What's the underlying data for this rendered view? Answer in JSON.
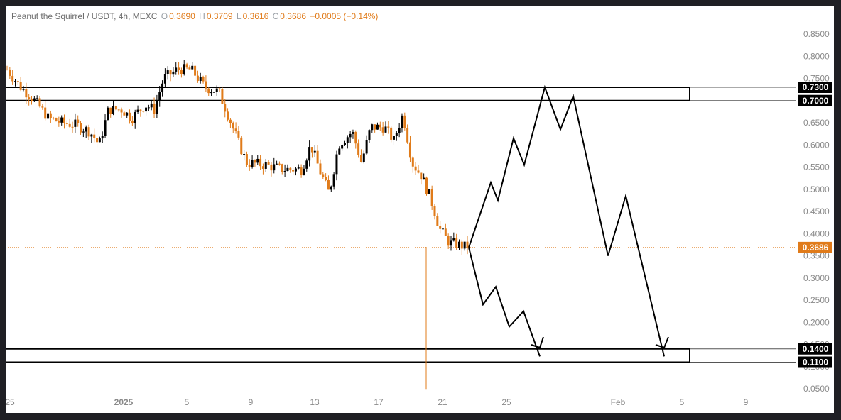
{
  "header": {
    "symbol": "Peanut the Squirrel / USDT, 4h, MEXC",
    "o_label": "O",
    "o_value": "0.3690",
    "h_label": "H",
    "h_value": "0.3709",
    "l_label": "L",
    "l_value": "0.3616",
    "c_label": "C",
    "c_value": "0.3686",
    "change": "−0.0005 (−0.14%)"
  },
  "colors": {
    "up": "#000000",
    "down": "#e07b1a",
    "price_line": "#e07b1a",
    "box": "#000000",
    "axis_text": "#8a8a8a"
  },
  "chart_data": {
    "type": "candlestick",
    "ylim": [
      0.02,
      0.86
    ],
    "y_ticks": [
      "0.8500",
      "0.8000",
      "0.7500",
      "0.7000",
      "0.6500",
      "0.6000",
      "0.5500",
      "0.5000",
      "0.4500",
      "0.4000",
      "0.3500",
      "0.3000",
      "0.2500",
      "0.2000",
      "0.1500",
      "0.1000",
      "0.0500"
    ],
    "x_ticks": [
      "25",
      "2025",
      "5",
      "9",
      "13",
      "17",
      "21",
      "25",
      "Feb",
      "5",
      "9"
    ],
    "last_price": 0.3686,
    "last_price_label": "0.3686",
    "zones": [
      {
        "top": 0.73,
        "bottom": 0.7,
        "top_label": "0.7300",
        "bottom_label": "0.7000"
      },
      {
        "top": 0.14,
        "bottom": 0.11,
        "top_label": "0.1400",
        "bottom_label": "0.1100"
      }
    ],
    "trend": [
      [
        0.0,
        0.77
      ],
      [
        0.03,
        0.73
      ],
      [
        0.06,
        0.7
      ],
      [
        0.09,
        0.66
      ],
      [
        0.12,
        0.65
      ],
      [
        0.15,
        0.645
      ],
      [
        0.18,
        0.63
      ],
      [
        0.2,
        0.6
      ],
      [
        0.22,
        0.68
      ],
      [
        0.25,
        0.68
      ],
      [
        0.27,
        0.66
      ],
      [
        0.3,
        0.69
      ],
      [
        0.32,
        0.68
      ],
      [
        0.34,
        0.75
      ],
      [
        0.37,
        0.77
      ],
      [
        0.4,
        0.77
      ],
      [
        0.43,
        0.73
      ],
      [
        0.46,
        0.72
      ],
      [
        0.49,
        0.64
      ],
      [
        0.52,
        0.56
      ],
      [
        0.56,
        0.555
      ],
      [
        0.6,
        0.545
      ],
      [
        0.64,
        0.545
      ],
      [
        0.66,
        0.6
      ],
      [
        0.68,
        0.54
      ],
      [
        0.7,
        0.49
      ],
      [
        0.72,
        0.6
      ],
      [
        0.75,
        0.63
      ],
      [
        0.77,
        0.56
      ],
      [
        0.79,
        0.64
      ],
      [
        0.82,
        0.64
      ],
      [
        0.84,
        0.61
      ],
      [
        0.86,
        0.67
      ],
      [
        0.88,
        0.56
      ],
      [
        0.9,
        0.53
      ],
      [
        0.92,
        0.48
      ],
      [
        0.94,
        0.41
      ],
      [
        0.96,
        0.38
      ],
      [
        0.98,
        0.375
      ],
      [
        1.0,
        0.3686
      ]
    ],
    "spike_low": 0.048,
    "projection_up": [
      [
        0.3686
      ],
      [
        0.515
      ],
      [
        0.475
      ],
      [
        0.615
      ],
      [
        0.555
      ],
      [
        0.73
      ],
      [
        0.635
      ],
      [
        0.71
      ],
      [
        0.35
      ],
      [
        0.485
      ],
      [
        0.123
      ]
    ],
    "projection_down": [
      [
        0.3686
      ],
      [
        0.24
      ],
      [
        0.28
      ],
      [
        0.19
      ],
      [
        0.225
      ],
      [
        0.123
      ]
    ]
  }
}
